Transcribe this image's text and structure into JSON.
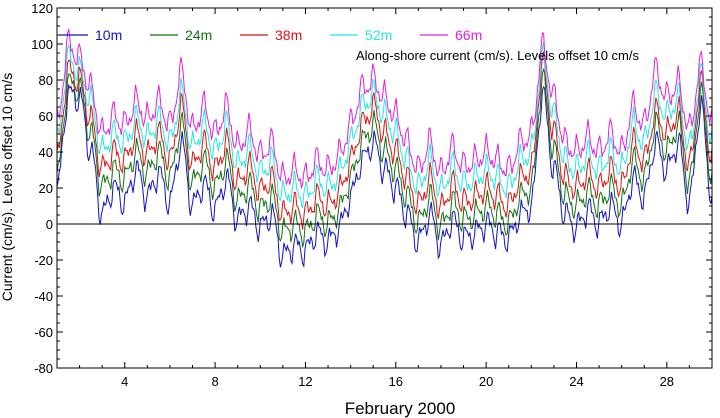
{
  "chart_data": {
    "type": "line",
    "title": "",
    "annotation": "Along-shore current (cm/s). Levels offset 10 cm/s",
    "xlabel": "February 2000",
    "ylabel": "Current (cm/s). Levels offset 10 cm/s",
    "xlim": [
      1,
      30
    ],
    "ylim": [
      -80,
      120
    ],
    "x_ticks": [
      4,
      8,
      12,
      16,
      20,
      24,
      28
    ],
    "x_tick_labels": [
      "4",
      "8",
      "12",
      "16",
      "20",
      "24",
      "28"
    ],
    "y_ticks": [
      -80,
      -60,
      -40,
      -20,
      0,
      20,
      40,
      60,
      80,
      100,
      120
    ],
    "y_tick_labels": [
      "-80",
      "-60",
      "-40",
      "-20",
      "0",
      "20",
      "40",
      "60",
      "80",
      "100",
      "120"
    ],
    "zero_line": true,
    "grid": false,
    "legend_position": "top-left",
    "colors": [
      "#1010c8",
      "#107010",
      "#e01010",
      "#20e8e8",
      "#e020e0"
    ],
    "x": [
      1.0,
      1.5,
      2.0,
      2.5,
      3.0,
      3.5,
      4.0,
      4.5,
      5.0,
      5.5,
      6.0,
      6.5,
      7.0,
      7.5,
      8.0,
      8.5,
      9.0,
      9.5,
      10.0,
      10.5,
      11.0,
      11.5,
      12.0,
      12.5,
      13.0,
      13.5,
      14.0,
      14.5,
      15.0,
      15.5,
      16.0,
      16.5,
      17.0,
      17.5,
      18.0,
      18.5,
      19.0,
      19.5,
      20.0,
      20.5,
      21.0,
      21.5,
      22.0,
      22.5,
      23.0,
      23.5,
      24.0,
      24.5,
      25.0,
      25.5,
      26.0,
      26.5,
      27.0,
      27.5,
      28.0,
      28.5,
      29.0,
      29.5,
      30.0
    ],
    "series": [
      {
        "name": "10m",
        "values": [
          18,
          72,
          70,
          40,
          5,
          20,
          12,
          30,
          15,
          28,
          12,
          45,
          10,
          22,
          8,
          25,
          2,
          10,
          -2,
          5,
          -18,
          -12,
          -15,
          -5,
          -10,
          -2,
          15,
          35,
          45,
          30,
          20,
          5,
          -10,
          5,
          -12,
          2,
          -8,
          -5,
          0,
          -5,
          -8,
          5,
          10,
          72,
          30,
          5,
          -2,
          8,
          0,
          10,
          0,
          25,
          15,
          45,
          30,
          45,
          12,
          65,
          15
        ]
      },
      {
        "name": "24m",
        "values": [
          25,
          78,
          75,
          50,
          20,
          30,
          25,
          40,
          28,
          40,
          25,
          55,
          22,
          35,
          20,
          35,
          12,
          22,
          8,
          15,
          -5,
          0,
          -5,
          5,
          0,
          8,
          25,
          45,
          55,
          40,
          30,
          15,
          0,
          15,
          -2,
          12,
          2,
          5,
          10,
          5,
          0,
          15,
          20,
          80,
          40,
          15,
          10,
          18,
          10,
          20,
          10,
          35,
          25,
          55,
          40,
          55,
          22,
          72,
          25
        ]
      },
      {
        "name": "38m",
        "values": [
          35,
          85,
          80,
          58,
          30,
          40,
          35,
          50,
          38,
          50,
          35,
          65,
          32,
          45,
          30,
          45,
          22,
          32,
          18,
          25,
          5,
          10,
          5,
          15,
          10,
          18,
          35,
          55,
          65,
          50,
          40,
          25,
          10,
          25,
          8,
          22,
          12,
          15,
          20,
          15,
          10,
          25,
          30,
          88,
          50,
          25,
          20,
          28,
          20,
          30,
          20,
          45,
          35,
          62,
          50,
          62,
          32,
          78,
          35
        ]
      },
      {
        "name": "52m",
        "values": [
          45,
          92,
          85,
          68,
          40,
          50,
          45,
          58,
          48,
          58,
          45,
          72,
          42,
          55,
          40,
          55,
          32,
          42,
          28,
          35,
          15,
          20,
          15,
          25,
          20,
          28,
          45,
          65,
          72,
          60,
          50,
          35,
          20,
          35,
          18,
          32,
          22,
          25,
          30,
          25,
          20,
          35,
          40,
          92,
          60,
          35,
          30,
          38,
          30,
          40,
          30,
          55,
          45,
          72,
          60,
          70,
          42,
          82,
          45
        ]
      },
      {
        "name": "66m",
        "values": [
          55,
          100,
          92,
          75,
          50,
          60,
          55,
          68,
          58,
          68,
          55,
          84,
          52,
          65,
          50,
          65,
          42,
          52,
          38,
          45,
          25,
          30,
          25,
          35,
          30,
          38,
          55,
          75,
          80,
          70,
          60,
          45,
          30,
          45,
          28,
          42,
          32,
          35,
          40,
          35,
          30,
          45,
          50,
          98,
          70,
          45,
          40,
          48,
          40,
          50,
          40,
          65,
          55,
          85,
          70,
          78,
          52,
          88,
          55
        ]
      }
    ]
  }
}
